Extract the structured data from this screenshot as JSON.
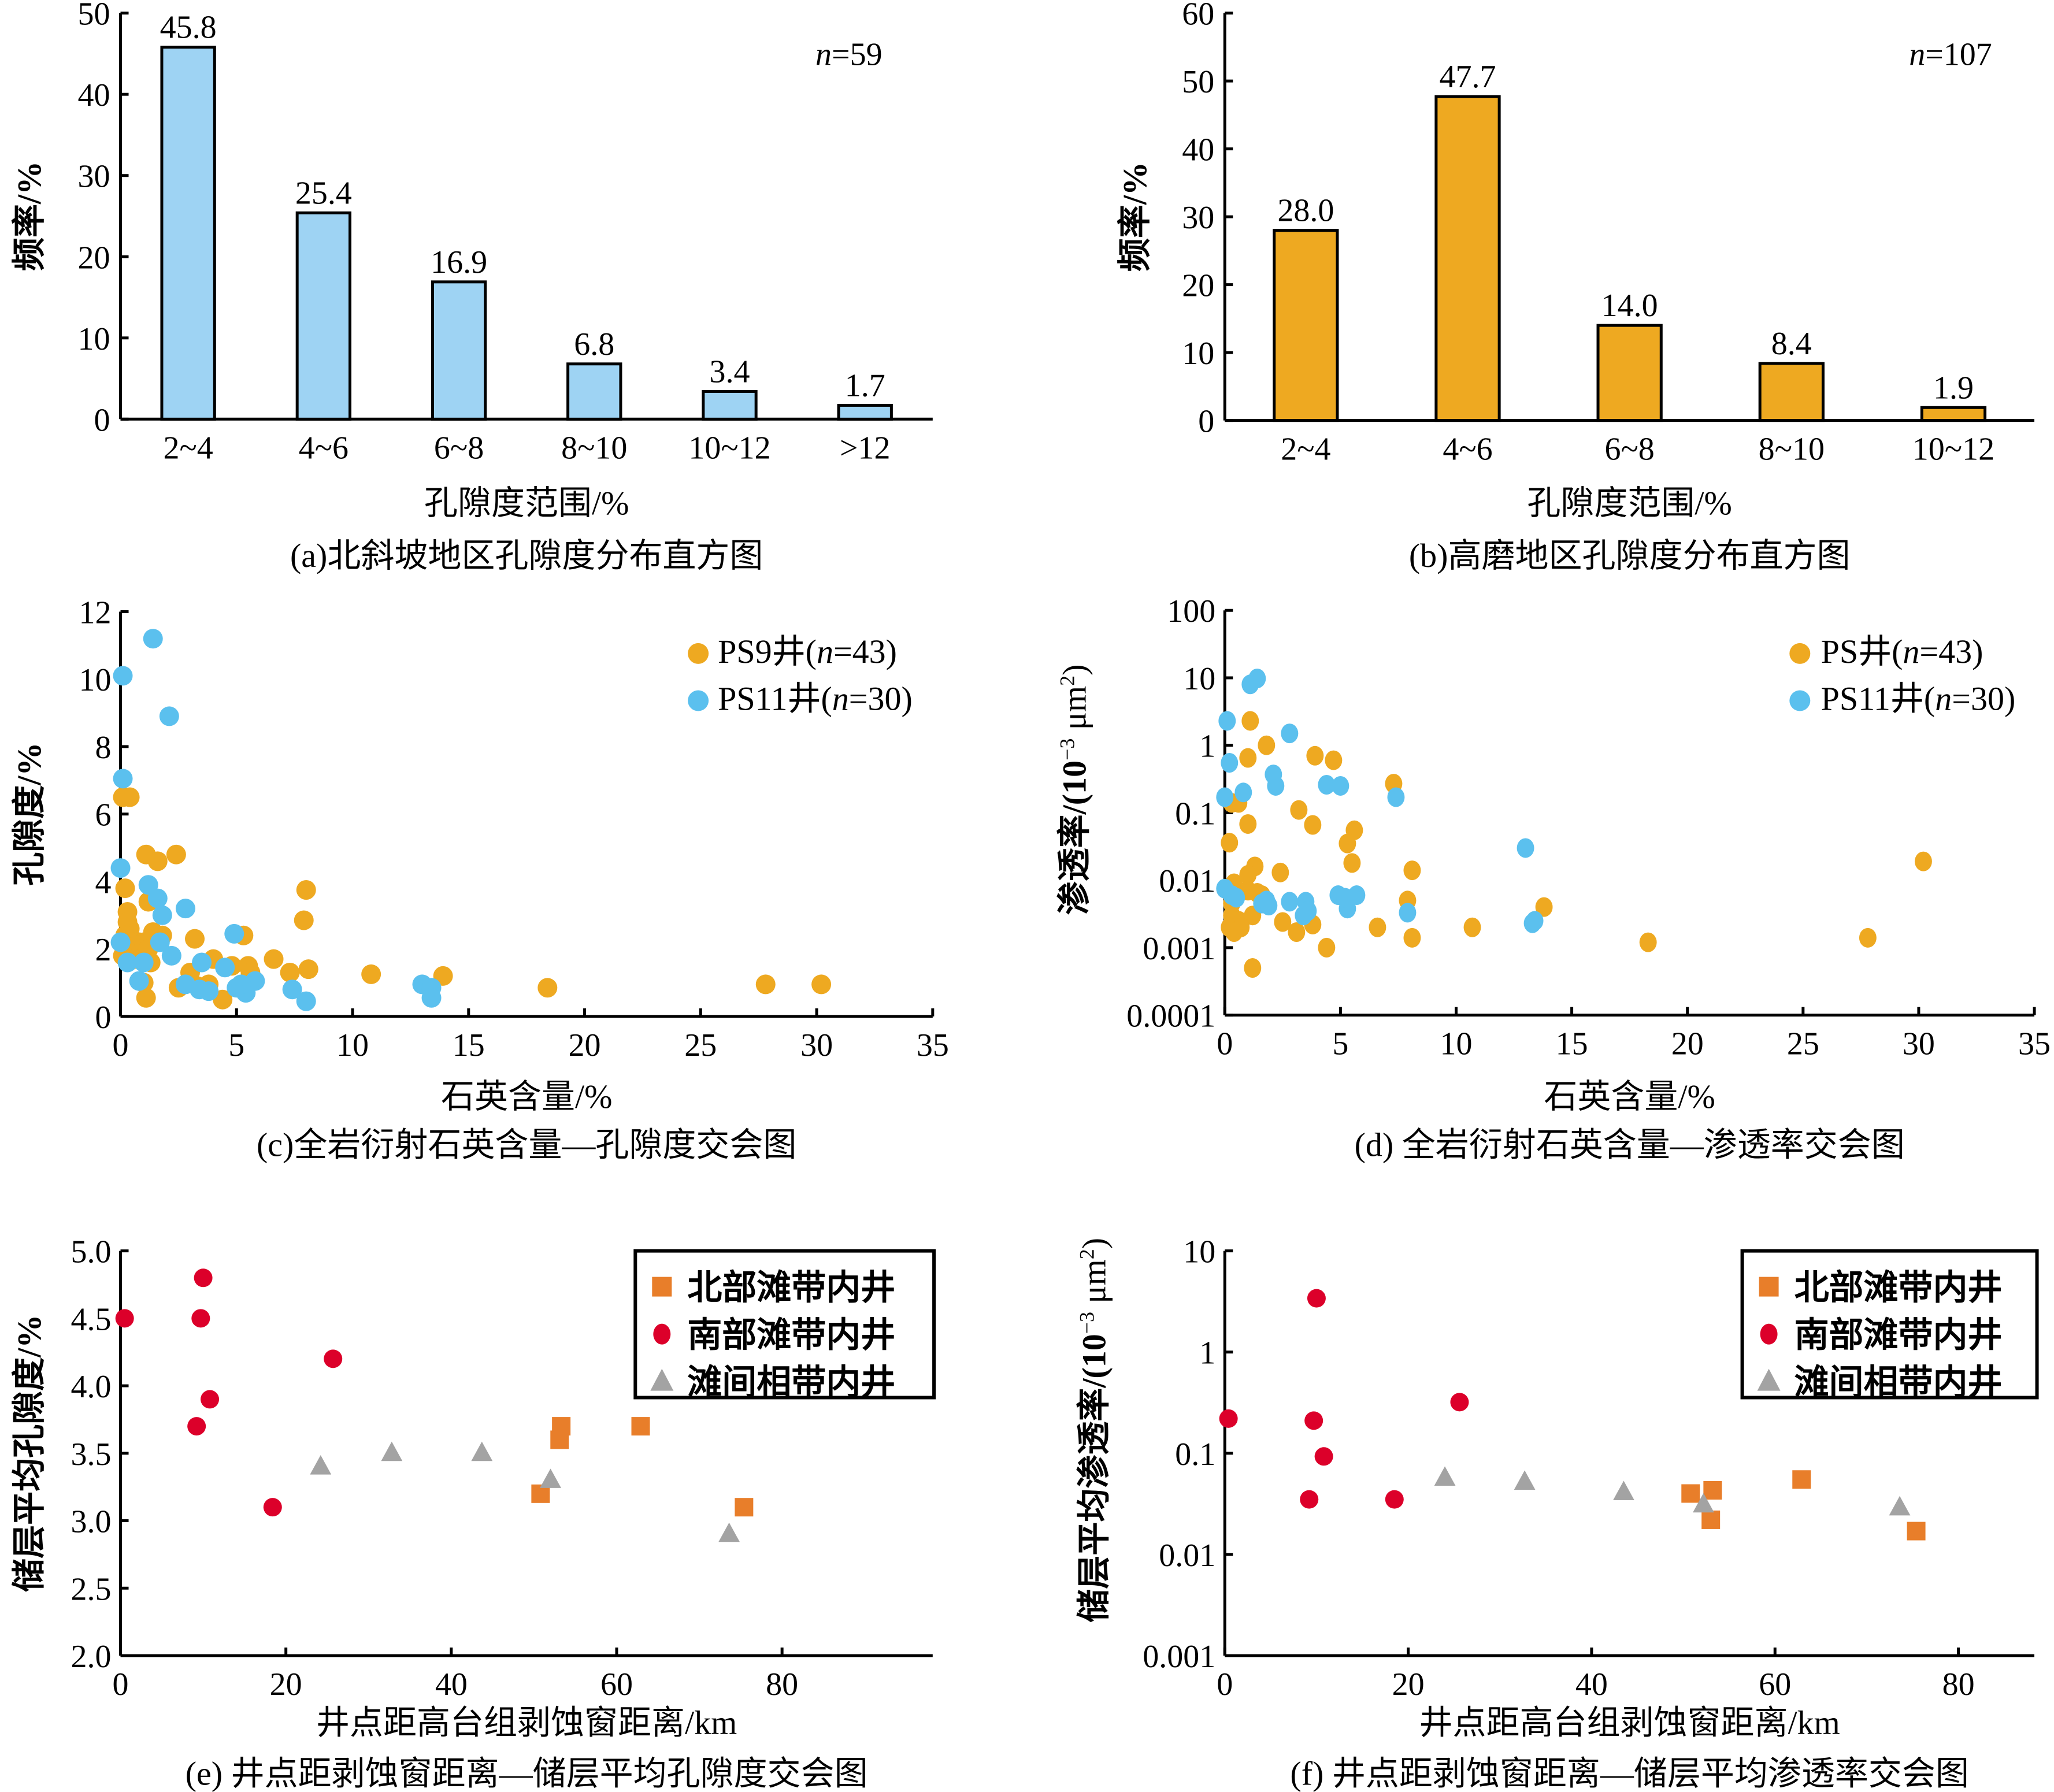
{
  "chart_data": [
    {
      "id": "a",
      "type": "bar",
      "title": "(a)北斜坡地区孔隙度分布直方图",
      "xlabel": "孔隙度范围/%",
      "ylabel": "频率/%",
      "annotation_prefix": "n",
      "annotation_value": "=59",
      "categories": [
        "2~4",
        "4~6",
        "6~8",
        "8~10",
        "10~12",
        ">12"
      ],
      "values": [
        45.8,
        25.4,
        16.9,
        6.8,
        3.4,
        1.7
      ],
      "value_labels": [
        "45.8",
        "25.4",
        "16.9",
        "6.8",
        "3.4",
        "1.7"
      ],
      "ylim": [
        0,
        50
      ],
      "yticks": [
        0,
        10,
        20,
        30,
        40,
        50
      ],
      "grid": false,
      "bar_color": "#9ed3f3"
    },
    {
      "id": "b",
      "type": "bar",
      "title": "(b)高磨地区孔隙度分布直方图",
      "xlabel": "孔隙度范围/%",
      "ylabel": "频率/%",
      "annotation_prefix": "n",
      "annotation_value": "=107",
      "categories": [
        "2~4",
        "4~6",
        "6~8",
        "8~10",
        "10~12"
      ],
      "values": [
        28.0,
        47.7,
        14.0,
        8.4,
        1.9
      ],
      "value_labels": [
        "28.0",
        "47.7",
        "14.0",
        "8.4",
        "1.9"
      ],
      "ylim": [
        0,
        60
      ],
      "yticks": [
        0,
        10,
        20,
        30,
        40,
        50,
        60
      ],
      "grid": false,
      "bar_color": "#eea921"
    },
    {
      "id": "c",
      "type": "scatter",
      "title": "(c)全岩衍射石英含量—孔隙度交会图",
      "xlabel": "石英含量/%",
      "ylabel": "孔隙度/%",
      "xlim": [
        0,
        35
      ],
      "ylim": [
        0,
        12
      ],
      "xticks": [
        0,
        5,
        10,
        15,
        20,
        25,
        30,
        35
      ],
      "yticks": [
        0,
        2,
        4,
        6,
        8,
        10,
        12
      ],
      "yscale": "linear",
      "grid": false,
      "legend_position": "top-right",
      "series": [
        {
          "name_prefix": "PS9井(",
          "name_n": "n",
          "name_suffix": "=43)",
          "color": "#eea921",
          "marker": "circle",
          "points": [
            [
              0.1,
              6.5
            ],
            [
              0.4,
              6.5
            ],
            [
              0.2,
              3.8
            ],
            [
              0.3,
              3.1
            ],
            [
              0.3,
              2.8
            ],
            [
              0.4,
              2.6
            ],
            [
              0.2,
              2.4
            ],
            [
              0.5,
              2.2
            ],
            [
              0.1,
              1.8
            ],
            [
              0.8,
              2.2
            ],
            [
              1.0,
              2.2
            ],
            [
              1.2,
              2.0
            ],
            [
              1.3,
              1.6
            ],
            [
              1.0,
              1.0
            ],
            [
              1.1,
              0.55
            ],
            [
              1.1,
              4.8
            ],
            [
              1.6,
              4.6
            ],
            [
              2.4,
              4.8
            ],
            [
              1.2,
              3.4
            ],
            [
              1.8,
              2.4
            ],
            [
              3.2,
              2.3
            ],
            [
              2.5,
              0.85
            ],
            [
              3.0,
              1.3
            ],
            [
              3.8,
              0.95
            ],
            [
              4.0,
              1.7
            ],
            [
              4.4,
              0.5
            ],
            [
              4.8,
              1.5
            ],
            [
              5.3,
              2.4
            ],
            [
              5.5,
              1.5
            ],
            [
              5.6,
              1.3
            ],
            [
              3.3,
              0.9
            ],
            [
              6.6,
              1.7
            ],
            [
              7.3,
              1.3
            ],
            [
              8.1,
              1.4
            ],
            [
              7.9,
              2.85
            ],
            [
              8.0,
              3.75
            ],
            [
              10.8,
              1.25
            ],
            [
              13.9,
              1.2
            ],
            [
              18.4,
              0.85
            ],
            [
              27.8,
              0.95
            ],
            [
              30.2,
              0.95
            ],
            [
              1.4,
              2.5
            ],
            [
              0.6,
              1.7
            ]
          ]
        },
        {
          "name_prefix": "PS11井(",
          "name_n": "n",
          "name_suffix": "=30)",
          "color": "#5bc0ee",
          "marker": "circle",
          "points": [
            [
              1.4,
              11.2
            ],
            [
              0.1,
              10.1
            ],
            [
              2.1,
              8.9
            ],
            [
              0.1,
              7.05
            ],
            [
              0.0,
              4.4
            ],
            [
              1.2,
              3.9
            ],
            [
              1.6,
              3.5
            ],
            [
              2.8,
              3.2
            ],
            [
              1.8,
              3.0
            ],
            [
              0.0,
              2.2
            ],
            [
              1.7,
              2.2
            ],
            [
              0.3,
              1.6
            ],
            [
              2.2,
              1.8
            ],
            [
              0.8,
              1.05
            ],
            [
              1.0,
              1.6
            ],
            [
              3.5,
              1.6
            ],
            [
              3.4,
              0.8
            ],
            [
              4.5,
              1.45
            ],
            [
              5.0,
              0.85
            ],
            [
              5.4,
              0.7
            ],
            [
              5.8,
              1.05
            ],
            [
              4.9,
              2.45
            ],
            [
              7.4,
              0.8
            ],
            [
              8.0,
              0.45
            ],
            [
              13.0,
              0.95
            ],
            [
              13.4,
              0.85
            ],
            [
              13.4,
              0.55
            ],
            [
              2.8,
              0.95
            ],
            [
              3.8,
              0.75
            ],
            [
              5.2,
              0.95
            ]
          ]
        }
      ]
    },
    {
      "id": "d",
      "type": "scatter",
      "title": "(d) 全岩衍射石英含量—渗透率交会图",
      "xlabel": "石英含量/%",
      "ylabel_main": "渗透率/(10",
      "ylabel_sup": "−3",
      "ylabel_unit": " μm",
      "ylabel_sup2": "2",
      "ylabel_close": ")",
      "xlim": [
        0,
        35
      ],
      "ylim": [
        0.0001,
        100
      ],
      "xticks": [
        0,
        5,
        10,
        15,
        20,
        25,
        30,
        35
      ],
      "yticks": [
        0.0001,
        0.001,
        0.01,
        0.1,
        1,
        10,
        100
      ],
      "ytick_labels": [
        "0.0001",
        "0.001",
        "0.01",
        "0.1",
        "1",
        "10",
        "100"
      ],
      "yscale": "log",
      "grid": false,
      "legend_position": "top-right",
      "series": [
        {
          "name_prefix": "PS井(",
          "name_n": "n",
          "name_suffix": "=43)",
          "color": "#eea921",
          "marker": "circle",
          "points": [
            [
              1.1,
              2.3
            ],
            [
              1.8,
              1.0
            ],
            [
              1.0,
              0.65
            ],
            [
              3.9,
              0.7
            ],
            [
              4.7,
              0.6
            ],
            [
              7.3,
              0.27
            ],
            [
              0.3,
              0.14
            ],
            [
              0.6,
              0.14
            ],
            [
              3.2,
              0.11
            ],
            [
              1.0,
              0.068
            ],
            [
              3.8,
              0.066
            ],
            [
              5.6,
              0.055
            ],
            [
              0.2,
              0.036
            ],
            [
              5.3,
              0.035
            ],
            [
              5.5,
              0.018
            ],
            [
              1.3,
              0.016
            ],
            [
              1.0,
              0.012
            ],
            [
              2.4,
              0.013
            ],
            [
              8.1,
              0.014
            ],
            [
              0.4,
              0.009
            ],
            [
              1.0,
              0.007
            ],
            [
              1.6,
              0.006
            ],
            [
              7.9,
              0.005
            ],
            [
              0.3,
              0.0045
            ],
            [
              13.8,
              0.004
            ],
            [
              0.3,
              0.003
            ],
            [
              1.2,
              0.003
            ],
            [
              0.6,
              0.0025
            ],
            [
              2.5,
              0.0024
            ],
            [
              3.8,
              0.0022
            ],
            [
              0.2,
              0.002
            ],
            [
              0.7,
              0.002
            ],
            [
              6.6,
              0.002
            ],
            [
              10.7,
              0.002
            ],
            [
              3.1,
              0.0017
            ],
            [
              0.4,
              0.0017
            ],
            [
              8.1,
              0.0014
            ],
            [
              27.8,
              0.0014
            ],
            [
              18.3,
              0.0012
            ],
            [
              4.4,
              0.001
            ],
            [
              1.2,
              0.0005
            ],
            [
              30.2,
              0.019
            ],
            [
              1.4,
              0.0065
            ]
          ]
        },
        {
          "name_prefix": "PS11井(",
          "name_n": "n",
          "name_suffix": "=30)",
          "color": "#5bc0ee",
          "marker": "circle",
          "points": [
            [
              1.4,
              9.8
            ],
            [
              1.1,
              8.0
            ],
            [
              0.1,
              2.3
            ],
            [
              2.8,
              1.5
            ],
            [
              0.2,
              0.55
            ],
            [
              2.1,
              0.37
            ],
            [
              2.2,
              0.25
            ],
            [
              4.4,
              0.26
            ],
            [
              5.0,
              0.25
            ],
            [
              7.4,
              0.17
            ],
            [
              0.0,
              0.17
            ],
            [
              0.8,
              0.2
            ],
            [
              13.0,
              0.03
            ],
            [
              0.0,
              0.0075
            ],
            [
              0.3,
              0.006
            ],
            [
              1.8,
              0.005
            ],
            [
              1.6,
              0.0045
            ],
            [
              2.8,
              0.0048
            ],
            [
              3.5,
              0.0048
            ],
            [
              4.9,
              0.006
            ],
            [
              5.7,
              0.006
            ],
            [
              3.4,
              0.003
            ],
            [
              5.3,
              0.0038
            ],
            [
              7.9,
              0.0033
            ],
            [
              13.3,
              0.0023
            ],
            [
              13.4,
              0.0025
            ],
            [
              1.9,
              0.0042
            ],
            [
              0.5,
              0.0055
            ],
            [
              3.6,
              0.0035
            ],
            [
              5.2,
              0.0055
            ]
          ]
        }
      ]
    },
    {
      "id": "e",
      "type": "scatter",
      "title": "(e) 井点距剥蚀窗距离—储层平均孔隙度交会图",
      "xlabel": "井点距高台组剥蚀窗距离/km",
      "ylabel": "储层平均孔隙度/%",
      "xlim": [
        0,
        98
      ],
      "ylim": [
        2.0,
        5.0
      ],
      "xticks": [
        0,
        20,
        40,
        60,
        80
      ],
      "yticks": [
        2.0,
        2.5,
        3.0,
        3.5,
        4.0,
        4.5,
        5.0
      ],
      "ytick_labels": [
        "2.0",
        "2.5",
        "3.0",
        "3.5",
        "4.0",
        "4.5",
        "5.0"
      ],
      "yscale": "linear",
      "grid": false,
      "legend_position": "top-right",
      "series": [
        {
          "name": "北部滩带内井",
          "color": "#e87e2a",
          "marker": "square",
          "points": [
            [
              53.3,
              3.7
            ],
            [
              53.1,
              3.6
            ],
            [
              62.9,
              3.7
            ],
            [
              50.8,
              3.2
            ],
            [
              75.4,
              3.1
            ]
          ]
        },
        {
          "name": "南部滩带内井",
          "color": "#dc002a",
          "marker": "circle",
          "points": [
            [
              0.5,
              4.5
            ],
            [
              10.0,
              4.8
            ],
            [
              9.7,
              4.5
            ],
            [
              25.7,
              4.2
            ],
            [
              10.8,
              3.9
            ],
            [
              9.2,
              3.7
            ],
            [
              18.4,
              3.1
            ]
          ]
        },
        {
          "name": "滩间相带内井",
          "color": "#a3a3a3",
          "marker": "triangle",
          "points": [
            [
              24.2,
              3.4
            ],
            [
              32.8,
              3.5
            ],
            [
              43.7,
              3.5
            ],
            [
              52.0,
              3.3
            ],
            [
              73.6,
              2.9
            ]
          ]
        }
      ]
    },
    {
      "id": "f",
      "type": "scatter",
      "title": "(f) 井点距剥蚀窗距离—储层平均渗透率交会图",
      "xlabel": "井点距高台组剥蚀窗距离/km",
      "ylabel_main": "储层平均渗透率/(10",
      "ylabel_sup": "−3",
      "ylabel_unit": " μm",
      "ylabel_sup2": "2",
      "ylabel_close": ")",
      "xlim": [
        0,
        88
      ],
      "ylim": [
        0.001,
        10
      ],
      "xticks": [
        0,
        20,
        40,
        60,
        80
      ],
      "yticks": [
        0.001,
        0.01,
        0.1,
        1,
        10
      ],
      "ytick_labels": [
        "0.001",
        "0.01",
        "0.1",
        "1",
        "10"
      ],
      "yscale": "log",
      "grid": false,
      "legend_position": "top-right",
      "series": [
        {
          "name": "北部滩带内井",
          "color": "#e87e2a",
          "marker": "square",
          "points": [
            [
              50.8,
              0.04
            ],
            [
              53.2,
              0.043
            ],
            [
              53.0,
              0.022
            ],
            [
              62.9,
              0.055
            ],
            [
              75.4,
              0.017
            ]
          ]
        },
        {
          "name": "南部滩带内井",
          "color": "#dc002a",
          "marker": "circle",
          "points": [
            [
              0.4,
              0.22
            ],
            [
              9.7,
              0.21
            ],
            [
              10.0,
              3.4
            ],
            [
              25.6,
              0.32
            ],
            [
              10.8,
              0.093
            ],
            [
              9.2,
              0.035
            ],
            [
              18.5,
              0.035
            ]
          ]
        },
        {
          "name": "滩间相带内井",
          "color": "#a3a3a3",
          "marker": "triangle",
          "points": [
            [
              24.0,
              0.057
            ],
            [
              32.7,
              0.052
            ],
            [
              43.5,
              0.041
            ],
            [
              52.2,
              0.031
            ],
            [
              73.6,
              0.029
            ]
          ]
        }
      ]
    }
  ]
}
